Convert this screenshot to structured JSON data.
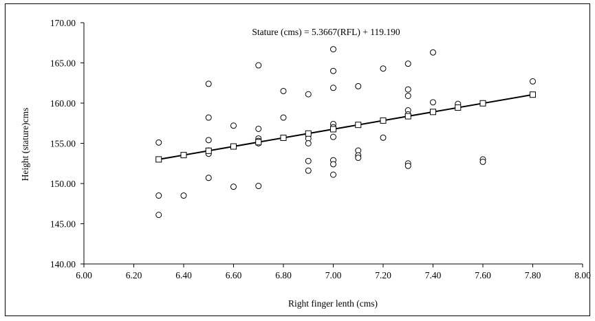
{
  "chart_data": {
    "type": "scatter",
    "equation_label": "Stature (cms) = 5.3667(RFL) + 119.190",
    "xlabel": "Right finger lenth (cms)",
    "ylabel": "Height (stature)cms",
    "xlim": [
      6.0,
      8.0
    ],
    "ylim": [
      140.0,
      170.0
    ],
    "x_ticks": [
      "6.00",
      "6.20",
      "6.40",
      "6.60",
      "6.80",
      "7.00",
      "7.20",
      "7.40",
      "7.60",
      "7.80",
      "8.00"
    ],
    "y_ticks": [
      "140.00",
      "145.00",
      "150.00",
      "155.00",
      "160.00",
      "165.00",
      "170.00"
    ],
    "grid": false,
    "series": [
      {
        "marker": "circle",
        "points": [
          [
            6.3,
            155.1
          ],
          [
            6.3,
            148.5
          ],
          [
            6.3,
            146.1
          ],
          [
            6.4,
            148.5
          ],
          [
            6.5,
            162.4
          ],
          [
            6.5,
            158.2
          ],
          [
            6.5,
            155.4
          ],
          [
            6.5,
            154.1
          ],
          [
            6.5,
            153.7
          ],
          [
            6.5,
            150.7
          ],
          [
            6.6,
            157.2
          ],
          [
            6.6,
            149.6
          ],
          [
            6.7,
            164.7
          ],
          [
            6.7,
            156.8
          ],
          [
            6.7,
            155.6
          ],
          [
            6.7,
            155.3
          ],
          [
            6.7,
            155.0
          ],
          [
            6.7,
            149.7
          ],
          [
            6.8,
            161.5
          ],
          [
            6.8,
            158.2
          ],
          [
            6.9,
            161.1
          ],
          [
            6.9,
            156.2
          ],
          [
            6.9,
            155.6
          ],
          [
            6.9,
            155.0
          ],
          [
            6.9,
            152.8
          ],
          [
            6.9,
            151.6
          ],
          [
            7.0,
            166.7
          ],
          [
            7.0,
            164.0
          ],
          [
            7.0,
            161.9
          ],
          [
            7.0,
            157.4
          ],
          [
            7.0,
            157.0
          ],
          [
            7.0,
            155.8
          ],
          [
            7.0,
            152.9
          ],
          [
            7.0,
            152.4
          ],
          [
            7.0,
            151.1
          ],
          [
            7.1,
            162.1
          ],
          [
            7.1,
            154.1
          ],
          [
            7.1,
            153.5
          ],
          [
            7.1,
            153.2
          ],
          [
            7.2,
            164.3
          ],
          [
            7.2,
            155.7
          ],
          [
            7.3,
            164.9
          ],
          [
            7.3,
            161.7
          ],
          [
            7.3,
            160.9
          ],
          [
            7.3,
            159.1
          ],
          [
            7.3,
            158.6
          ],
          [
            7.3,
            152.5
          ],
          [
            7.3,
            152.2
          ],
          [
            7.4,
            166.3
          ],
          [
            7.4,
            160.1
          ],
          [
            7.5,
            159.9
          ],
          [
            7.6,
            153.0
          ],
          [
            7.6,
            152.7
          ],
          [
            7.8,
            162.7
          ]
        ]
      },
      {
        "marker": "square",
        "fit": {
          "slope": 5.3667,
          "intercept": 119.19
        },
        "x": [
          6.3,
          6.4,
          6.5,
          6.6,
          6.7,
          6.8,
          6.9,
          7.0,
          7.1,
          7.2,
          7.3,
          7.4,
          7.5,
          7.6,
          7.8
        ]
      }
    ]
  }
}
